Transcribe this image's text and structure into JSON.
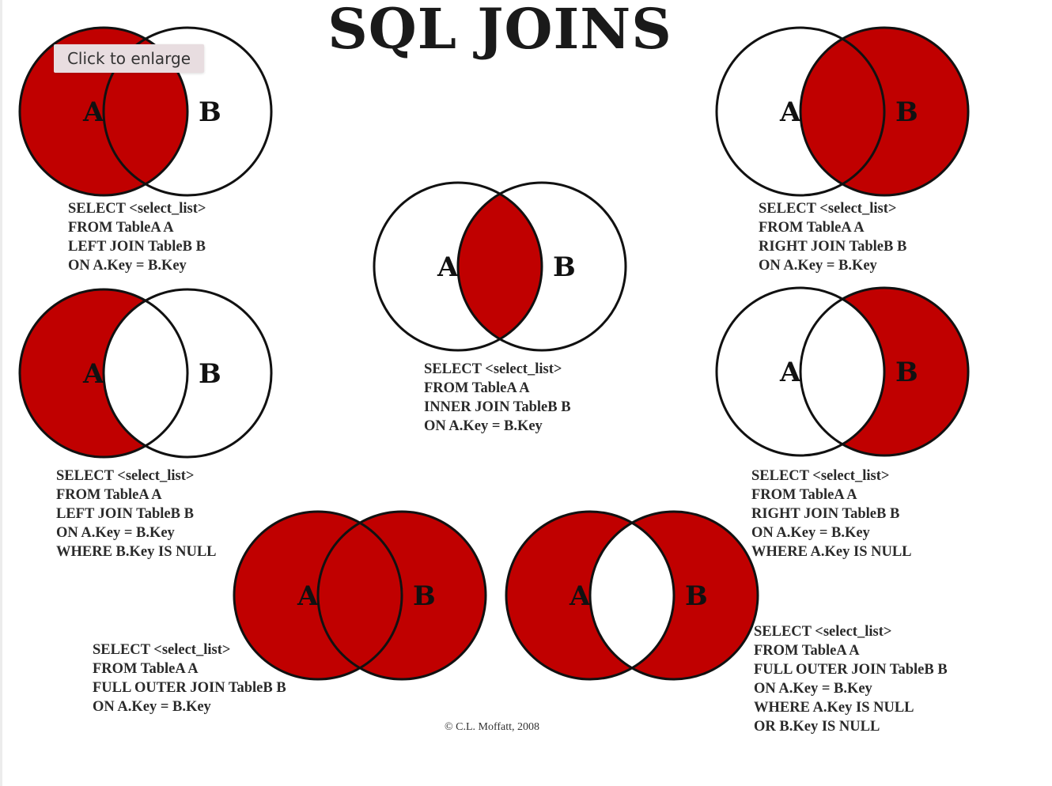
{
  "title": "SQL JOINS",
  "tooltip": {
    "label": "Click to enlarge"
  },
  "credit": "© C.L. Moffatt, 2008",
  "colors": {
    "fill": "#c00000",
    "stroke": "#111111",
    "background": "#ffffff"
  },
  "diagrams": [
    {
      "id": "left-join",
      "label_a": "A",
      "label_b": "B",
      "shade": [
        "a_only",
        "intersection"
      ],
      "sql": [
        "SELECT <select_list>",
        "FROM TableA A",
        "LEFT JOIN TableB B",
        "ON A.Key = B.Key"
      ]
    },
    {
      "id": "right-join",
      "label_a": "A",
      "label_b": "B",
      "shade": [
        "intersection",
        "b_only"
      ],
      "sql": [
        "SELECT <select_list>",
        "FROM TableA A",
        "RIGHT JOIN TableB B",
        "ON A.Key = B.Key"
      ]
    },
    {
      "id": "inner-join",
      "label_a": "A",
      "label_b": "B",
      "shade": [
        "intersection"
      ],
      "sql": [
        "SELECT <select_list>",
        "FROM TableA A",
        "INNER JOIN TableB B",
        "ON A.Key = B.Key"
      ]
    },
    {
      "id": "left-join-null",
      "label_a": "A",
      "label_b": "B",
      "shade": [
        "a_only"
      ],
      "sql": [
        "SELECT <select_list>",
        "FROM TableA A",
        "LEFT JOIN TableB B",
        "ON A.Key = B.Key",
        "WHERE B.Key IS NULL"
      ]
    },
    {
      "id": "right-join-null",
      "label_a": "A",
      "label_b": "B",
      "shade": [
        "b_only"
      ],
      "sql": [
        "SELECT <select_list>",
        "FROM TableA A",
        "RIGHT JOIN TableB B",
        "ON A.Key = B.Key",
        "WHERE A.Key IS NULL"
      ]
    },
    {
      "id": "full-outer-join",
      "label_a": "A",
      "label_b": "B",
      "shade": [
        "a_only",
        "intersection",
        "b_only"
      ],
      "sql": [
        "SELECT <select_list>",
        "FROM TableA A",
        "FULL OUTER JOIN TableB B",
        "ON A.Key = B.Key"
      ]
    },
    {
      "id": "full-outer-join-null",
      "label_a": "A",
      "label_b": "B",
      "shade": [
        "a_only",
        "b_only"
      ],
      "sql": [
        "SELECT <select_list>",
        "FROM TableA A",
        "FULL OUTER JOIN TableB B",
        "ON A.Key = B.Key",
        "WHERE A.Key IS NULL",
        "OR B.Key IS NULL"
      ]
    }
  ]
}
